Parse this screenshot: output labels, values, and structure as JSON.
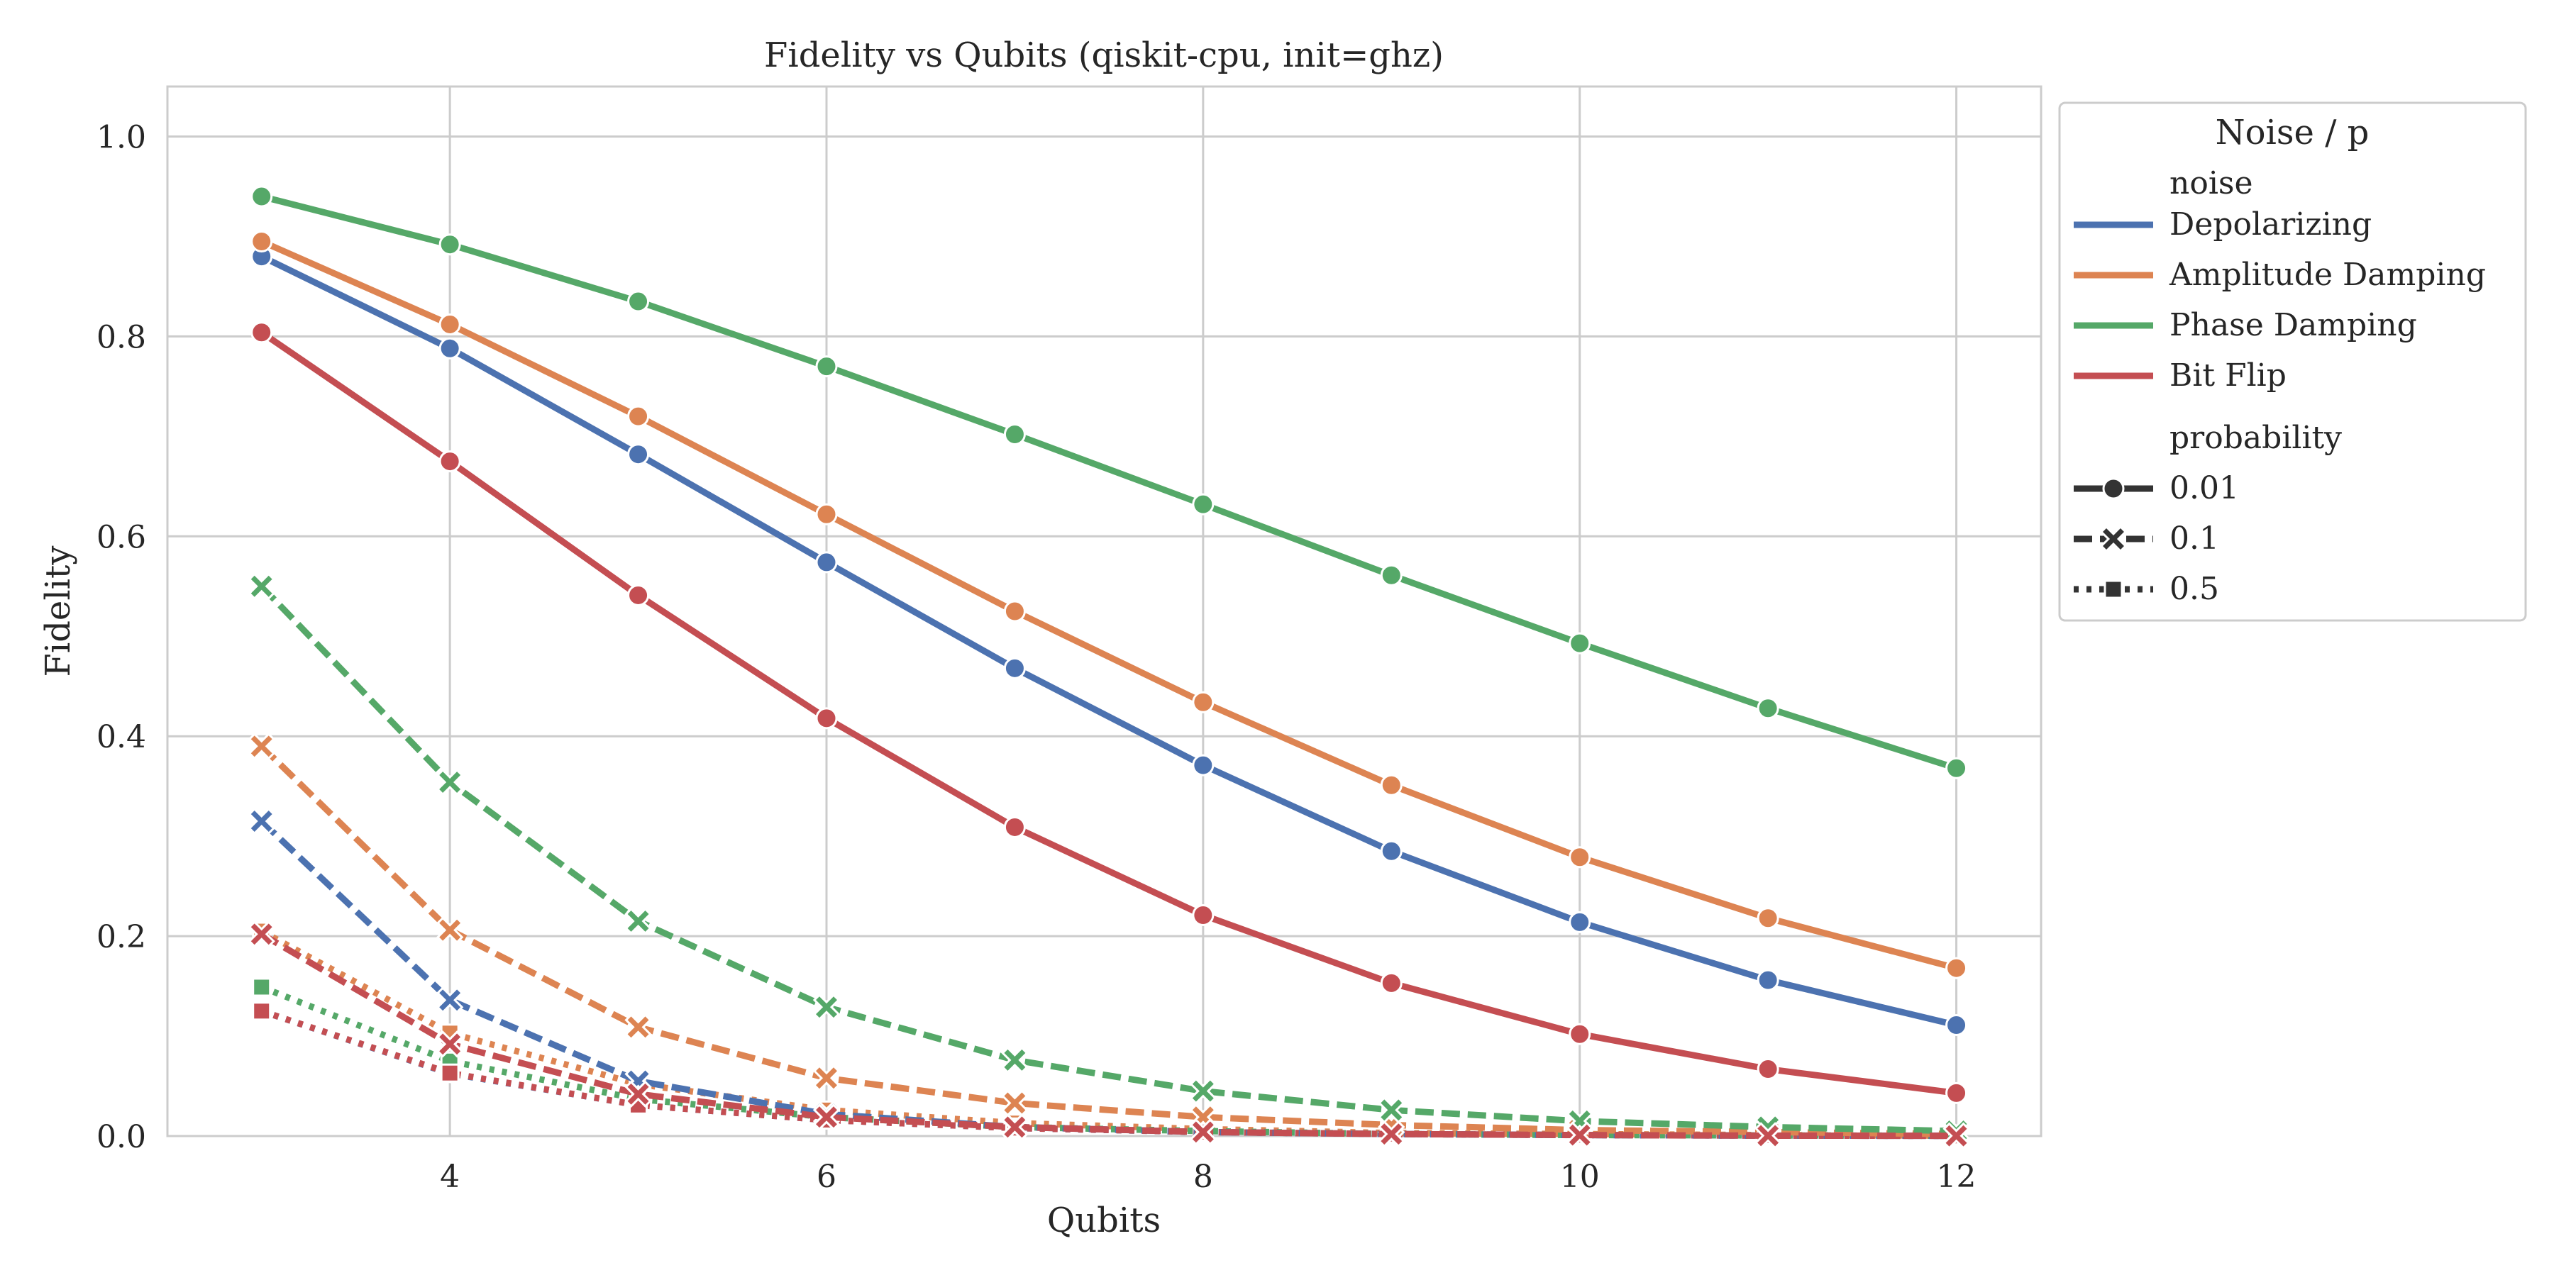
{
  "chart_data": {
    "type": "line",
    "title": "Fidelity vs Qubits (qiskit-cpu, init=ghz)",
    "xlabel": "Qubits",
    "ylabel": "Fidelity",
    "xlim": [
      2.5,
      12.45
    ],
    "ylim": [
      0,
      1.05
    ],
    "x_ticks": [
      4,
      6,
      8,
      10,
      12
    ],
    "y_ticks": [
      0.0,
      0.2,
      0.4,
      0.6,
      0.8,
      1.0
    ],
    "grid": true,
    "x": [
      3,
      4,
      5,
      6,
      7,
      8,
      9,
      10,
      11,
      12
    ],
    "legend": {
      "title": "Noise / p",
      "placement": "outside-right",
      "hue_title": "noise",
      "style_title": "probability",
      "styles": [
        {
          "label": "0.01",
          "marker": "circle",
          "dash": "solid"
        },
        {
          "label": "0.1",
          "marker": "x",
          "dash": "dashed"
        },
        {
          "label": "0.5",
          "marker": "square",
          "dash": "dotted"
        }
      ]
    },
    "series": [
      {
        "name": "Depolarizing",
        "color": "#4c72b0",
        "p": "0.01",
        "values": [
          0.88,
          0.788,
          0.682,
          0.574,
          0.468,
          0.371,
          0.285,
          0.214,
          0.156,
          0.111
        ]
      },
      {
        "name": "Depolarizing",
        "color": "#4c72b0",
        "p": "0.1",
        "values": [
          0.315,
          0.136,
          0.055,
          0.022,
          0.009,
          0.004,
          0.002,
          0.001,
          0.0004,
          0.0002
        ]
      },
      {
        "name": "Depolarizing",
        "color": "#4c72b0",
        "p": "0.5",
        "values": [
          0.125,
          0.0625,
          0.031,
          0.016,
          0.008,
          0.004,
          0.002,
          0.001,
          0.0005,
          0.0002
        ]
      },
      {
        "name": "Amplitude Damping",
        "color": "#dd8452",
        "p": "0.01",
        "values": [
          0.895,
          0.812,
          0.72,
          0.622,
          0.525,
          0.434,
          0.351,
          0.279,
          0.218,
          0.168
        ]
      },
      {
        "name": "Amplitude Damping",
        "color": "#dd8452",
        "p": "0.1",
        "values": [
          0.39,
          0.206,
          0.109,
          0.058,
          0.033,
          0.019,
          0.011,
          0.006,
          0.004,
          0.002
        ]
      },
      {
        "name": "Amplitude Damping",
        "color": "#dd8452",
        "p": "0.5",
        "values": [
          0.205,
          0.103,
          0.052,
          0.026,
          0.013,
          0.007,
          0.003,
          0.002,
          0.001,
          0.0004
        ]
      },
      {
        "name": "Phase Damping",
        "color": "#55a868",
        "p": "0.01",
        "values": [
          0.94,
          0.892,
          0.835,
          0.77,
          0.702,
          0.632,
          0.561,
          0.493,
          0.428,
          0.368
        ]
      },
      {
        "name": "Phase Damping",
        "color": "#55a868",
        "p": "0.1",
        "values": [
          0.55,
          0.354,
          0.215,
          0.129,
          0.076,
          0.045,
          0.026,
          0.015,
          0.009,
          0.005
        ]
      },
      {
        "name": "Phase Damping",
        "color": "#55a868",
        "p": "0.5",
        "values": [
          0.149,
          0.075,
          0.037,
          0.019,
          0.009,
          0.005,
          0.002,
          0.001,
          0.0006,
          0.0003
        ]
      },
      {
        "name": "Bit Flip",
        "color": "#c44e52",
        "p": "0.01",
        "values": [
          0.804,
          0.675,
          0.541,
          0.418,
          0.309,
          0.221,
          0.153,
          0.102,
          0.067,
          0.043
        ]
      },
      {
        "name": "Bit Flip",
        "color": "#c44e52",
        "p": "0.1",
        "values": [
          0.202,
          0.092,
          0.042,
          0.019,
          0.009,
          0.004,
          0.002,
          0.001,
          0.0004,
          0.0002
        ]
      },
      {
        "name": "Bit Flip",
        "color": "#c44e52",
        "p": "0.5",
        "values": [
          0.125,
          0.063,
          0.031,
          0.016,
          0.008,
          0.004,
          0.002,
          0.001,
          0.0005,
          0.0002
        ]
      }
    ]
  }
}
